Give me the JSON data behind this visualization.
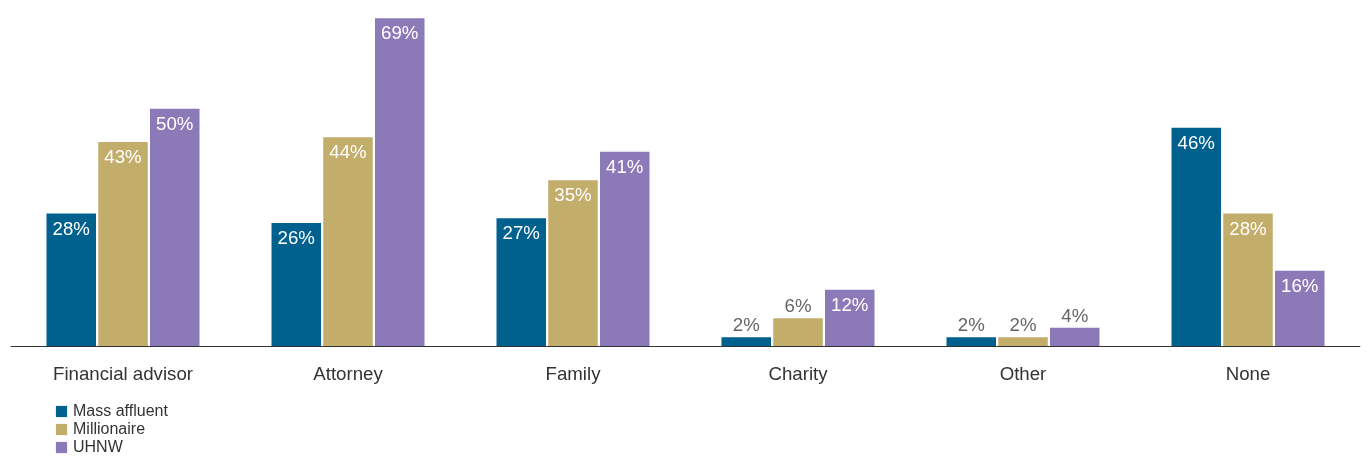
{
  "chart_data": {
    "type": "bar",
    "categories": [
      "Financial advisor",
      "Attorney",
      "Family",
      "Charity",
      "Other",
      "None"
    ],
    "series": [
      {
        "name": "Mass affluent",
        "color": "#00618f",
        "values": [
          28,
          26,
          27,
          2,
          2,
          46
        ],
        "value_labels": [
          "28%",
          "26%",
          "27%",
          "2%",
          "2%",
          "46%"
        ]
      },
      {
        "name": "Millionaire",
        "color": "#c2ad6a",
        "values": [
          43,
          44,
          35,
          6,
          2,
          28
        ],
        "value_labels": [
          "43%",
          "44%",
          "35%",
          "6%",
          "2%",
          "28%"
        ]
      },
      {
        "name": "UHNW",
        "color": "#8c7ab8",
        "values": [
          50,
          69,
          41,
          12,
          4,
          16
        ],
        "value_labels": [
          "50%",
          "69%",
          "41%",
          "12%",
          "4%",
          "16%"
        ]
      }
    ],
    "legend": "bottom left"
  }
}
